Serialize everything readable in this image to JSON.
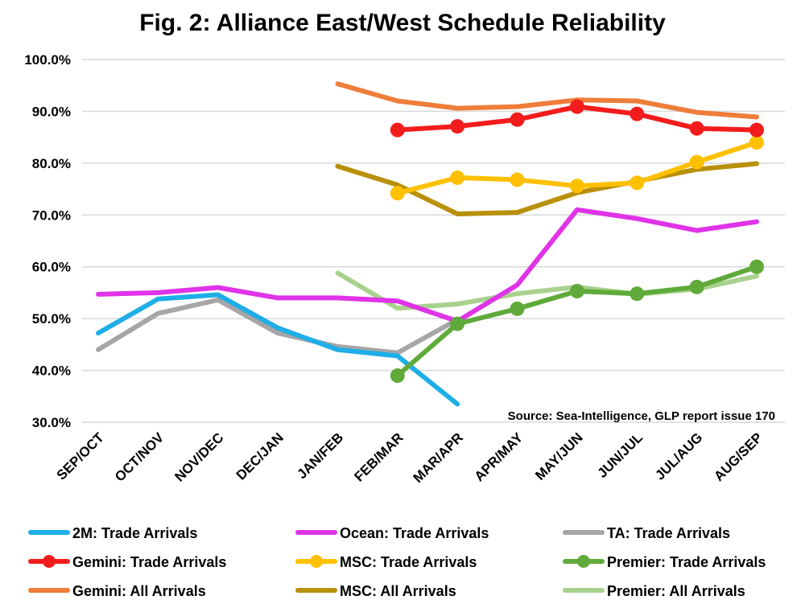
{
  "chart_data": {
    "type": "line",
    "title": "Fig. 2: Alliance East/West Schedule Reliability",
    "source": "Source: Sea-Intelligence, GLP report issue 170",
    "xlabel": "",
    "ylabel": "",
    "ylim": [
      30,
      100
    ],
    "y_ticks": [
      "30.0%",
      "40.0%",
      "50.0%",
      "60.0%",
      "70.0%",
      "80.0%",
      "90.0%",
      "100.0%"
    ],
    "y_tick_values": [
      30,
      40,
      50,
      60,
      70,
      80,
      90,
      100
    ],
    "grid": true,
    "legend_position": "bottom",
    "categories": [
      "SEP/OCT",
      "OCT/NOV",
      "NOV/DEC",
      "DEC/JAN",
      "JAN/FEB",
      "FEB/MAR",
      "MAR/APR",
      "APR/MAY",
      "MAY/JUN",
      "JUN/JUL",
      "JUL/AUG",
      "AUG/SEP"
    ],
    "series": [
      {
        "name": "2M: Trade Arrivals",
        "color": "#1eaee8",
        "markers": false,
        "values": [
          47.2,
          53.8,
          54.6,
          48.2,
          44.0,
          42.8,
          33.5,
          null,
          null,
          null,
          null,
          null
        ]
      },
      {
        "name": "Ocean: Trade Arrivals",
        "color": "#e033e8",
        "markers": false,
        "values": [
          54.7,
          55.0,
          56.0,
          54.0,
          54.0,
          53.4,
          49.5,
          56.5,
          71.0,
          69.3,
          67.0,
          68.7
        ]
      },
      {
        "name": "TA: Trade Arrivals",
        "color": "#a6a6a6",
        "markers": false,
        "values": [
          44.0,
          51.0,
          53.6,
          47.2,
          44.6,
          43.4,
          49.8,
          null,
          null,
          null,
          null,
          null
        ]
      },
      {
        "name": "Gemini: Trade Arrivals",
        "color": "#f21c1c",
        "markers": true,
        "values": [
          null,
          null,
          null,
          null,
          null,
          86.4,
          87.1,
          88.4,
          90.9,
          89.5,
          86.7,
          86.4
        ]
      },
      {
        "name": "MSC: Trade Arrivals",
        "color": "#ffc000",
        "markers": true,
        "values": [
          null,
          null,
          null,
          null,
          null,
          74.2,
          77.2,
          76.8,
          75.6,
          76.2,
          80.2,
          84.0
        ]
      },
      {
        "name": "Premier: Trade Arrivals",
        "color": "#5faa3a",
        "markers": true,
        "values": [
          null,
          null,
          null,
          null,
          null,
          39.0,
          49.0,
          51.9,
          55.3,
          54.8,
          56.1,
          60.0
        ]
      },
      {
        "name": "Gemini: All Arrivals",
        "color": "#ef7d3a",
        "markers": false,
        "values": [
          null,
          null,
          null,
          null,
          95.3,
          92.0,
          90.6,
          90.9,
          92.2,
          92.0,
          89.8,
          88.9
        ]
      },
      {
        "name": "MSC: All Arrivals",
        "color": "#b8900a",
        "markers": false,
        "values": [
          null,
          null,
          null,
          null,
          79.4,
          75.8,
          70.2,
          70.5,
          74.3,
          76.5,
          78.8,
          79.9
        ]
      },
      {
        "name": "Premier: All Arrivals",
        "color": "#a9d18e",
        "markers": false,
        "values": [
          null,
          null,
          null,
          null,
          58.8,
          52.0,
          52.8,
          54.8,
          56.1,
          54.7,
          55.7,
          58.2
        ]
      }
    ]
  }
}
